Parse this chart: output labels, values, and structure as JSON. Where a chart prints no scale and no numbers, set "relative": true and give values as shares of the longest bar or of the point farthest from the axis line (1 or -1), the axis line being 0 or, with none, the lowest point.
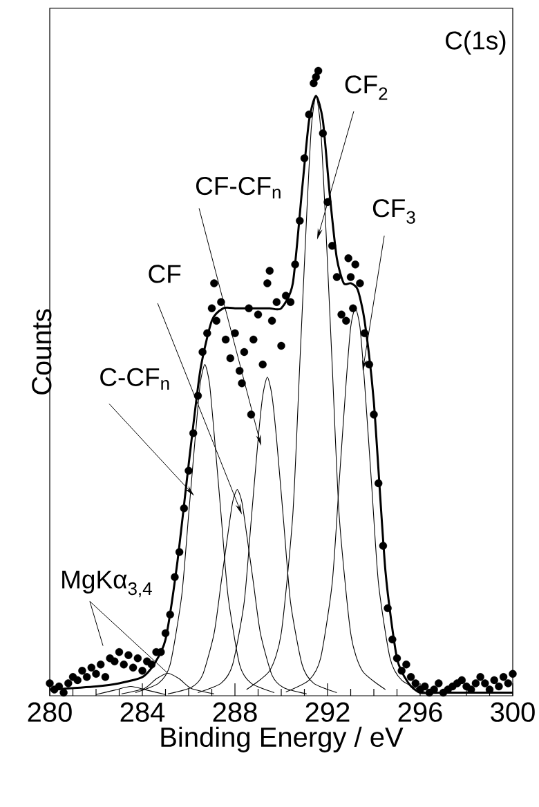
{
  "chart_data": {
    "type": "scatter",
    "relative": true,
    "xlabel": "Binding Energy / eV",
    "ylabel": "Counts",
    "xlim": [
      280,
      300
    ],
    "xticks": [
      280,
      284,
      288,
      292,
      296,
      300
    ],
    "annotations": [
      "C(1s)",
      "CF$_{2}$",
      "CF-CF$_{n}$",
      "CF$_{3}$",
      "CF",
      "C-CF$_{n}$",
      "MgKα$_{3,4}$"
    ],
    "series": [
      {
        "color": "#000000",
        "x": [
          280.0,
          280.2,
          280.4,
          280.6,
          280.8,
          281.0,
          281.2,
          281.4,
          281.6,
          281.8,
          282.0,
          282.2,
          282.4,
          282.6,
          282.8,
          283.0,
          283.2,
          283.4,
          283.6,
          283.8,
          284.0,
          284.2,
          284.4,
          284.6,
          284.8,
          285.0,
          285.2,
          285.4,
          285.6,
          285.8,
          286.0,
          286.2,
          286.4,
          286.6,
          286.8,
          287.0,
          287.2,
          287.4,
          287.6,
          287.8,
          288.0,
          288.2,
          288.4,
          288.6,
          288.8,
          289.0,
          289.2,
          289.4,
          289.6,
          289.8,
          290.0,
          290.2,
          290.4,
          290.6,
          290.8,
          291.0,
          291.2,
          291.4,
          291.6,
          291.8,
          292.0,
          292.2,
          292.4,
          292.6,
          292.8,
          293.0,
          293.2,
          293.4,
          293.6,
          293.8,
          294.0,
          294.2,
          294.4,
          294.6,
          294.8,
          295.0,
          295.2,
          295.4,
          295.6,
          295.8,
          296.0,
          296.2,
          296.4,
          296.6,
          296.8,
          297.0,
          297.2,
          297.4,
          297.6,
          297.8,
          298.0,
          298.2,
          298.4,
          298.6,
          298.8,
          299.0,
          299.2,
          299.4,
          299.6,
          299.8,
          300.0,
          287.1,
          288.3,
          288.7,
          289.5,
          291.5,
          293.1,
          292.9
        ],
        "values": [
          0.02,
          0.01,
          0.015,
          0.005,
          0.02,
          0.03,
          0.025,
          0.04,
          0.03,
          0.045,
          0.035,
          0.05,
          0.03,
          0.06,
          0.055,
          0.07,
          0.05,
          0.065,
          0.045,
          0.06,
          0.04,
          0.055,
          0.05,
          0.07,
          0.07,
          0.1,
          0.13,
          0.19,
          0.23,
          0.3,
          0.36,
          0.42,
          0.48,
          0.55,
          0.58,
          0.62,
          0.6,
          0.63,
          0.57,
          0.54,
          0.58,
          0.52,
          0.55,
          0.62,
          0.57,
          0.61,
          0.53,
          0.66,
          0.6,
          0.63,
          0.56,
          0.64,
          0.63,
          0.69,
          0.76,
          0.86,
          0.93,
          0.98,
          1.0,
          0.9,
          0.79,
          0.72,
          0.67,
          0.61,
          0.6,
          0.67,
          0.69,
          0.66,
          0.58,
          0.53,
          0.45,
          0.34,
          0.24,
          0.14,
          0.09,
          0.06,
          0.04,
          0.05,
          0.03,
          0.02,
          0.01,
          0.015,
          0.005,
          0.01,
          0.02,
          0.005,
          0.01,
          0.015,
          0.02,
          0.025,
          0.015,
          0.01,
          0.02,
          0.03,
          0.02,
          0.01,
          0.025,
          0.015,
          0.03,
          0.02,
          0.035,
          0.66,
          0.5,
          0.45,
          0.68,
          0.99,
          0.62,
          0.7
        ]
      },
      {
        "type": "line",
        "color": "#000000",
        "x": [
          280,
          282,
          283,
          284,
          284.5,
          285,
          285.5,
          286,
          286.5,
          287,
          287.5,
          288,
          288.5,
          289,
          289.5,
          290,
          290.5,
          290.9,
          291.2,
          291.5,
          291.8,
          292.1,
          292.4,
          292.7,
          293,
          293.3,
          293.6,
          294,
          294.5,
          295,
          295.5,
          296,
          297,
          300
        ],
        "values": [
          0.01,
          0.015,
          0.02,
          0.03,
          0.05,
          0.09,
          0.21,
          0.37,
          0.52,
          0.6,
          0.62,
          0.62,
          0.62,
          0.62,
          0.62,
          0.62,
          0.66,
          0.81,
          0.92,
          0.96,
          0.92,
          0.8,
          0.7,
          0.66,
          0.66,
          0.65,
          0.6,
          0.47,
          0.2,
          0.06,
          0.02,
          0.005,
          0.005,
          0.005
        ]
      },
      {
        "type": "line",
        "color": "#000000",
        "x": [
          283.7,
          284.7,
          285.2,
          285.7,
          286.0,
          286.3,
          286.5,
          286.7,
          286.9,
          287.1,
          287.4,
          287.7,
          288.2,
          288.7,
          289.7
        ],
        "values": [
          0.005,
          0.02,
          0.05,
          0.16,
          0.29,
          0.42,
          0.5,
          0.53,
          0.5,
          0.42,
          0.29,
          0.16,
          0.05,
          0.02,
          0.005
        ]
      },
      {
        "type": "line",
        "color": "#000000",
        "x": [
          285.1,
          286.1,
          286.6,
          287.1,
          287.4,
          287.7,
          287.9,
          288.1,
          288.3,
          288.5,
          288.8,
          289.1,
          289.6,
          290.1,
          291.1
        ],
        "values": [
          0.003,
          0.013,
          0.033,
          0.1,
          0.18,
          0.26,
          0.31,
          0.33,
          0.31,
          0.26,
          0.18,
          0.1,
          0.033,
          0.013,
          0.003
        ]
      },
      {
        "type": "line",
        "color": "#000000",
        "x": [
          286.4,
          287.4,
          287.9,
          288.4,
          288.7,
          289.0,
          289.2,
          289.4,
          289.6,
          289.8,
          290.1,
          290.4,
          290.9,
          291.4,
          292.4
        ],
        "values": [
          0.005,
          0.02,
          0.05,
          0.15,
          0.28,
          0.41,
          0.48,
          0.51,
          0.48,
          0.41,
          0.28,
          0.15,
          0.05,
          0.02,
          0.005
        ]
      },
      {
        "type": "line",
        "color": "#000000",
        "x": [
          288.5,
          289.5,
          290.0,
          290.5,
          290.8,
          291.1,
          291.3,
          291.5,
          291.7,
          291.9,
          292.2,
          292.5,
          293.0,
          293.5,
          294.5
        ],
        "values": [
          0.01,
          0.04,
          0.1,
          0.29,
          0.53,
          0.77,
          0.91,
          0.96,
          0.91,
          0.77,
          0.53,
          0.29,
          0.1,
          0.04,
          0.01
        ]
      },
      {
        "type": "line",
        "color": "#000000",
        "x": [
          290.2,
          291.2,
          291.7,
          292.2,
          292.5,
          292.8,
          293.0,
          293.2,
          293.4,
          293.6,
          293.9,
          294.2,
          294.7,
          295.2,
          296.2
        ],
        "values": [
          0.006,
          0.025,
          0.06,
          0.18,
          0.34,
          0.5,
          0.59,
          0.62,
          0.59,
          0.5,
          0.34,
          0.18,
          0.06,
          0.025,
          0.006
        ]
      },
      {
        "type": "line",
        "color": "#000000",
        "x": [
          283.1,
          284.1,
          284.6,
          285.1,
          285.6,
          286.1,
          287.1
        ],
        "values": [
          0.003,
          0.012,
          0.027,
          0.036,
          0.027,
          0.012,
          0.003
        ]
      },
      {
        "type": "line",
        "color": "#000000",
        "x": [
          282.0,
          282.8,
          283.5,
          284.2,
          285.0
        ],
        "values": [
          0.002,
          0.009,
          0.015,
          0.009,
          0.002
        ]
      }
    ]
  }
}
